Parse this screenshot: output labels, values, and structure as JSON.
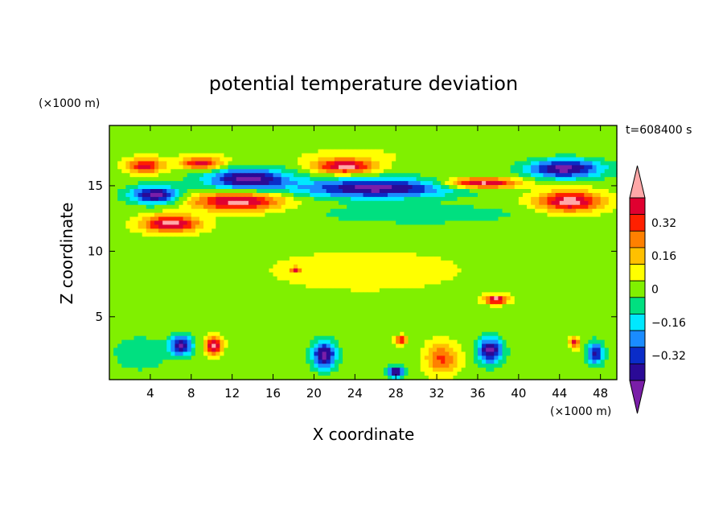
{
  "chart_data": {
    "type": "heatmap",
    "title": "potential temperature deviation",
    "time_label": "t=608400 s",
    "xlabel": "X coordinate",
    "ylabel": "Z coordinate",
    "x_unit": "(×1000 m)",
    "y_unit": "(×1000 m)",
    "xlim": [
      0,
      49.6
    ],
    "ylim": [
      0.2,
      19.6
    ],
    "x_ticks": [
      4,
      8,
      12,
      16,
      20,
      24,
      28,
      32,
      36,
      40,
      44,
      48
    ],
    "y_ticks": [
      5,
      10,
      15
    ],
    "grid": false,
    "legend": "colorbar-right",
    "colorbar": {
      "levels": [
        -0.48,
        -0.4,
        -0.32,
        -0.24,
        -0.16,
        -0.08,
        0,
        0.08,
        0.16,
        0.24,
        0.32,
        0.4,
        0.48
      ],
      "tick_labels": [
        "0.32",
        "0.16",
        "0",
        "−0.16",
        "−0.32"
      ],
      "tick_values": [
        0.32,
        0.16,
        0,
        -0.16,
        -0.32
      ],
      "colors": [
        "#7a1ea8",
        "#2a0a96",
        "#0a2cc8",
        "#1a8cff",
        "#00e8ff",
        "#00e080",
        "#80f000",
        "#ffff00",
        "#ffc000",
        "#ff8000",
        "#ff2000",
        "#e00030",
        "#ffa8a8"
      ]
    },
    "features": [
      {
        "cx": 3.5,
        "cz": 16.5,
        "rx": 2.2,
        "rz": 0.7,
        "v": 0.4
      },
      {
        "cx": 9.0,
        "cz": 16.7,
        "rx": 2.5,
        "rz": 0.6,
        "v": 0.4
      },
      {
        "cx": 13.5,
        "cz": 15.5,
        "rx": 5.0,
        "rz": 1.0,
        "v": -0.48
      },
      {
        "cx": 4.5,
        "cz": 14.3,
        "rx": 3.0,
        "rz": 0.8,
        "v": -0.48
      },
      {
        "cx": 12.5,
        "cz": 13.8,
        "rx": 5.5,
        "rz": 0.9,
        "v": 0.48
      },
      {
        "cx": 6.0,
        "cz": 12.1,
        "rx": 3.5,
        "rz": 0.8,
        "v": 0.48
      },
      {
        "cx": 23.0,
        "cz": 16.5,
        "rx": 3.5,
        "rz": 0.7,
        "v": 0.48
      },
      {
        "cx": 26.0,
        "cz": 14.8,
        "rx": 9.0,
        "rz": 0.9,
        "v": -0.48
      },
      {
        "cx": 30.0,
        "cz": 12.8,
        "rx": 12.0,
        "rz": 0.9,
        "v": -0.12
      },
      {
        "cx": 36.5,
        "cz": 15.2,
        "rx": 4.5,
        "rz": 0.5,
        "v": 0.48
      },
      {
        "cx": 44.5,
        "cz": 16.3,
        "rx": 4.5,
        "rz": 0.9,
        "v": -0.48
      },
      {
        "cx": 45.0,
        "cz": 13.8,
        "rx": 4.0,
        "rz": 1.0,
        "v": 0.48
      },
      {
        "cx": 18.2,
        "cz": 8.6,
        "rx": 0.6,
        "rz": 0.3,
        "v": 0.4
      },
      {
        "cx": 37.8,
        "cz": 6.3,
        "rx": 1.3,
        "rz": 0.4,
        "v": 0.48
      },
      {
        "cx": 7.0,
        "cz": 2.8,
        "rx": 1.3,
        "rz": 0.9,
        "v": -0.48
      },
      {
        "cx": 10.2,
        "cz": 2.8,
        "rx": 1.0,
        "rz": 0.9,
        "v": 0.48
      },
      {
        "cx": 21.0,
        "cz": 2.1,
        "rx": 1.4,
        "rz": 1.3,
        "v": -0.48
      },
      {
        "cx": 28.5,
        "cz": 3.2,
        "rx": 0.7,
        "rz": 0.4,
        "v": 0.4
      },
      {
        "cx": 28.0,
        "cz": 0.8,
        "rx": 1.0,
        "rz": 0.5,
        "v": -0.48
      },
      {
        "cx": 32.5,
        "cz": 1.8,
        "rx": 2.0,
        "rz": 1.5,
        "v": 0.3
      },
      {
        "cx": 37.2,
        "cz": 2.4,
        "rx": 1.5,
        "rz": 1.2,
        "v": -0.48
      },
      {
        "cx": 45.5,
        "cz": 3.0,
        "rx": 0.6,
        "rz": 0.5,
        "v": 0.4
      },
      {
        "cx": 47.5,
        "cz": 2.2,
        "rx": 1.0,
        "rz": 1.0,
        "v": -0.4
      },
      {
        "cx": 25.0,
        "cz": 17.5,
        "rx": 25.0,
        "rz": 1.2,
        "v": 0.04
      },
      {
        "cx": 25.0,
        "cz": 8.5,
        "rx": 25.0,
        "rz": 4.0,
        "v": 0.05
      },
      {
        "cx": 3.0,
        "cz": 2.2,
        "rx": 3.0,
        "rz": 1.5,
        "v": -0.12
      }
    ]
  }
}
